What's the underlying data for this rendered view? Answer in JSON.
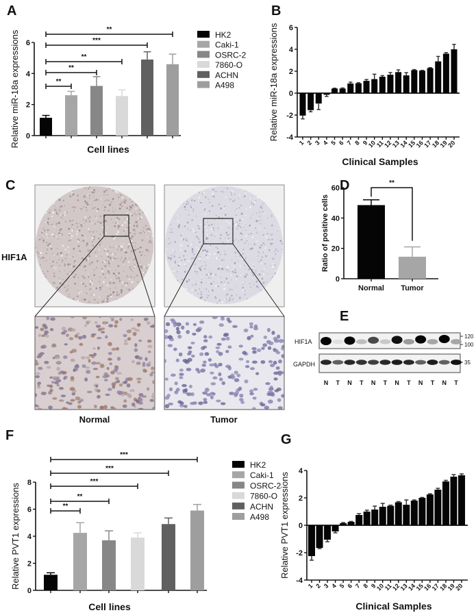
{
  "panels": {
    "A": "A",
    "B": "B",
    "C": "C",
    "D": "D",
    "E": "E",
    "F": "F",
    "G": "G"
  },
  "ihc": {
    "row_label": "HIF1A",
    "columns": [
      "Normal",
      "Tumor"
    ]
  },
  "blot": {
    "rows": [
      "HIF1A",
      "GAPDH"
    ],
    "markers": {
      "hif1a": [
        "120",
        "100"
      ],
      "gapdh": [
        "35"
      ]
    },
    "lanes": [
      "N",
      "T",
      "N",
      "T",
      "N",
      "T",
      "N",
      "T",
      "N",
      "T",
      "N",
      "T"
    ],
    "hif1a_band_intensity": [
      1.0,
      0.05,
      1.0,
      0.2,
      0.7,
      0.15,
      0.95,
      0.35,
      1.0,
      0.3,
      1.0,
      0.3
    ],
    "gapdh_band_intensity": [
      0.85,
      0.6,
      0.85,
      0.8,
      0.75,
      0.85,
      0.9,
      0.85,
      0.6,
      0.9,
      0.6,
      0.95
    ]
  },
  "chart_data": [
    {
      "panel": "A",
      "type": "bar",
      "ylabel": "Relative miR-18a expressions",
      "xlabel": "Cell lines",
      "categories": [
        "HK2",
        "Caki-1",
        "OSRC-2",
        "7860-O",
        "ACHN",
        "A498"
      ],
      "values": [
        1.15,
        2.6,
        3.2,
        2.55,
        4.9,
        4.6
      ],
      "errors": [
        0.15,
        0.25,
        0.6,
        0.4,
        0.5,
        0.65
      ],
      "colors": [
        "#050505",
        "#a6a6a6",
        "#878787",
        "#d9d9d9",
        "#606060",
        "#9e9e9e"
      ],
      "ylim": [
        0,
        6
      ],
      "yticks": [
        0,
        2,
        4,
        6
      ],
      "legend": {
        "placement": "right",
        "entries": [
          "HK2",
          "Caki-1",
          "OSRC-2",
          "7860-O",
          "ACHN",
          "A498"
        ]
      },
      "significance": [
        {
          "from": "HK2",
          "to": "A498",
          "label": "**"
        },
        {
          "from": "HK2",
          "to": "ACHN",
          "label": "***"
        },
        {
          "from": "HK2",
          "to": "7860-O",
          "label": "**"
        },
        {
          "from": "HK2",
          "to": "OSRC-2",
          "label": "**"
        },
        {
          "from": "HK2",
          "to": "Caki-1",
          "label": "**"
        }
      ]
    },
    {
      "panel": "B",
      "type": "bar",
      "ylabel": "Relative miR-18a expressions",
      "xlabel": "Clinical Samples",
      "categories": [
        "1",
        "2",
        "3",
        "4",
        "5",
        "6",
        "7",
        "8",
        "9",
        "10",
        "11",
        "12",
        "13",
        "14",
        "15",
        "16",
        "17",
        "18",
        "19",
        "20"
      ],
      "values": [
        -2.05,
        -1.55,
        -0.95,
        -0.15,
        0.42,
        0.42,
        0.88,
        0.9,
        1.12,
        1.28,
        1.5,
        1.68,
        1.92,
        1.62,
        2.1,
        2.05,
        2.28,
        2.9,
        3.6,
        4.0
      ],
      "errors": [
        0.3,
        0.15,
        0.55,
        0.15,
        0.03,
        0.05,
        0.12,
        0.05,
        0.12,
        0.45,
        0.1,
        0.2,
        0.2,
        0.25,
        0.05,
        0.03,
        0.05,
        0.45,
        0.1,
        0.45
      ],
      "colors": [
        "#050505"
      ],
      "ylim": [
        -4,
        6
      ],
      "yticks": [
        -4,
        -2,
        0,
        2,
        4,
        6
      ]
    },
    {
      "panel": "D",
      "type": "bar",
      "ylabel": "Ratio of positive cells",
      "xlabel": "",
      "categories": [
        "Normal",
        "Tumor"
      ],
      "values": [
        48.5,
        14.5
      ],
      "errors": [
        3.5,
        6.5
      ],
      "colors": [
        "#050505",
        "#a6a6a6"
      ],
      "ylim": [
        0,
        60
      ],
      "yticks": [
        0,
        20,
        40,
        60
      ],
      "significance": [
        {
          "from": "Normal",
          "to": "Tumor",
          "label": "**"
        }
      ]
    },
    {
      "panel": "F",
      "type": "bar",
      "ylabel": "Relative PVT1 expressions",
      "xlabel": "Cell lines",
      "categories": [
        "HK2",
        "Caki-1",
        "OSRC-2",
        "7860-O",
        "ACHN",
        "A498"
      ],
      "values": [
        1.15,
        4.25,
        3.7,
        3.9,
        4.9,
        5.9
      ],
      "errors": [
        0.15,
        0.75,
        0.7,
        0.35,
        0.45,
        0.45
      ],
      "colors": [
        "#050505",
        "#a6a6a6",
        "#878787",
        "#d9d9d9",
        "#606060",
        "#9e9e9e"
      ],
      "ylim": [
        0,
        8
      ],
      "yticks": [
        0,
        2,
        4,
        6,
        8
      ],
      "legend": {
        "placement": "right",
        "entries": [
          "HK2",
          "Caki-1",
          "OSRC-2",
          "7860-O",
          "ACHN",
          "A498"
        ]
      },
      "significance": [
        {
          "from": "HK2",
          "to": "A498",
          "label": "***"
        },
        {
          "from": "HK2",
          "to": "ACHN",
          "label": "***"
        },
        {
          "from": "HK2",
          "to": "7860-O",
          "label": "***"
        },
        {
          "from": "HK2",
          "to": "OSRC-2",
          "label": "**"
        },
        {
          "from": "HK2",
          "to": "Caki-1",
          "label": "**"
        }
      ]
    },
    {
      "panel": "G",
      "type": "bar",
      "ylabel": "Relative  PVT1  expressions",
      "xlabel": "Clinical Samples",
      "categories": [
        "1",
        "2",
        "3",
        "4",
        "5",
        "6",
        "7",
        "8",
        "9",
        "10",
        "11",
        "12",
        "13",
        "14",
        "15",
        "16",
        "17",
        "18",
        "19",
        "20"
      ],
      "values": [
        -2.25,
        -1.65,
        -1.05,
        -0.45,
        0.15,
        0.25,
        0.75,
        1.0,
        1.15,
        1.35,
        1.42,
        1.68,
        1.5,
        1.8,
        2.0,
        2.25,
        2.6,
        3.2,
        3.55,
        3.65
      ],
      "errors": [
        0.3,
        0.05,
        0.15,
        0.1,
        0.05,
        0.03,
        0.1,
        0.1,
        0.25,
        0.25,
        0.05,
        0.05,
        0.35,
        0.05,
        0.03,
        0.05,
        0.1,
        0.08,
        0.15,
        0.1
      ],
      "colors": [
        "#050505"
      ],
      "ylim": [
        -4,
        4
      ],
      "yticks": [
        -4,
        -2,
        0,
        2,
        4
      ]
    }
  ]
}
